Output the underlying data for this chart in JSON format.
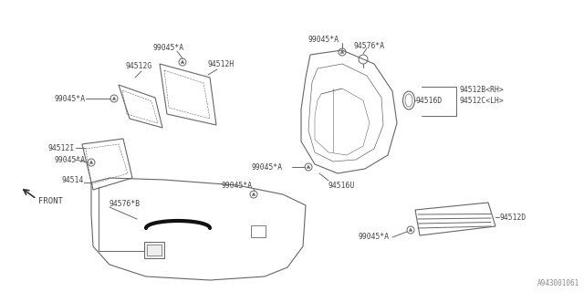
{
  "bg_color": "#ffffff",
  "line_color": "#666666",
  "text_color": "#444444",
  "fig_width": 6.4,
  "fig_height": 3.2,
  "dpi": 100,
  "watermark": "A943001061",
  "labels": {
    "part_94512G": "94512G",
    "part_94512H": "94512H",
    "part_94512I": "94512I",
    "part_94512B": "94512B<RH>",
    "part_94512C": "94512C<LH>",
    "part_94516D": "94516D",
    "part_94516U": "94516U",
    "part_94514": "94514",
    "part_94576B": "94576*B",
    "part_94576A": "94576*A",
    "part_94512D": "94512D",
    "clip": "99045*A",
    "front": "FRONT"
  }
}
